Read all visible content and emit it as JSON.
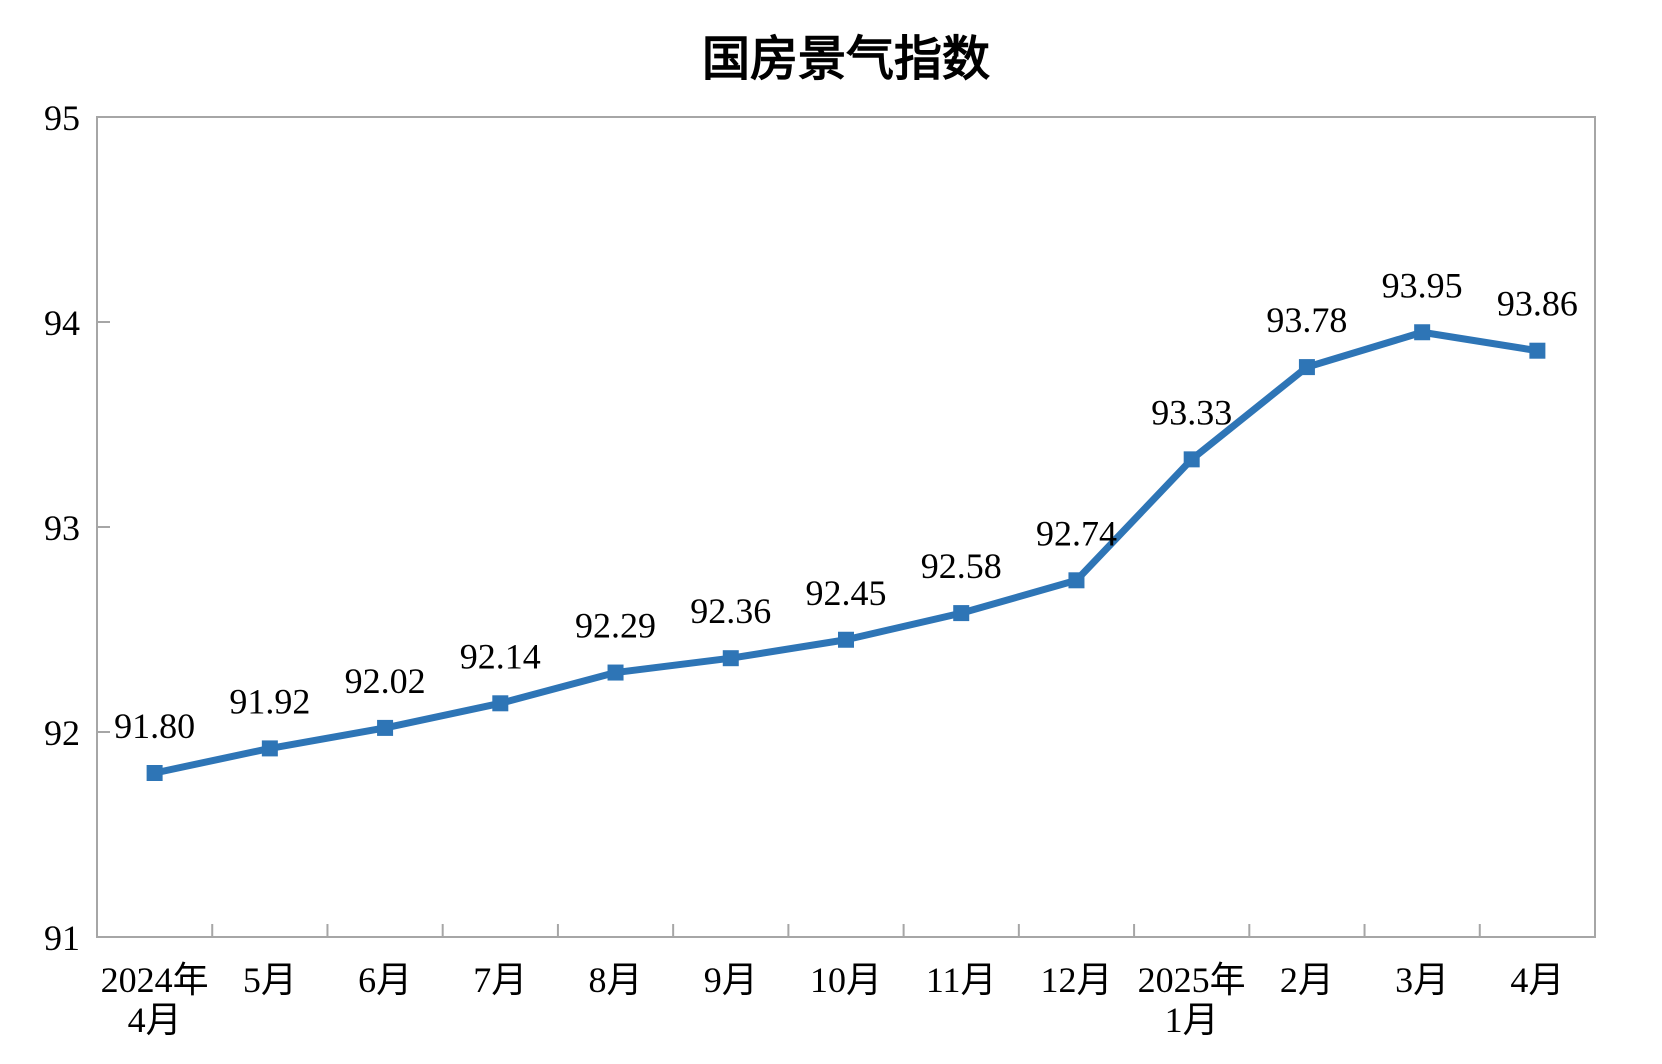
{
  "page": {
    "background": "#FFFFFF"
  },
  "chart_data": {
    "type": "line",
    "title": "国房景气指数",
    "categories": [
      [
        "2024年",
        "4月"
      ],
      [
        "5月"
      ],
      [
        "6月"
      ],
      [
        "7月"
      ],
      [
        "8月"
      ],
      [
        "9月"
      ],
      [
        "10月"
      ],
      [
        "11月"
      ],
      [
        "12月"
      ],
      [
        "2025年",
        "1月"
      ],
      [
        "2月"
      ],
      [
        "3月"
      ],
      [
        "4月"
      ]
    ],
    "series": [
      {
        "name": "国房景气指数",
        "values": [
          91.8,
          91.92,
          92.02,
          92.14,
          92.29,
          92.36,
          92.45,
          92.58,
          92.74,
          93.33,
          93.78,
          93.95,
          93.86
        ],
        "labels": [
          "91.80",
          "91.92",
          "92.02",
          "92.14",
          "92.29",
          "92.36",
          "92.45",
          "92.58",
          "92.74",
          "93.33",
          "93.78",
          "93.95",
          "93.86"
        ]
      }
    ],
    "xlabel": "",
    "ylabel": "",
    "ylim": [
      91,
      95
    ],
    "yticks": [
      91,
      92,
      93,
      94,
      95
    ],
    "grid": false,
    "legend_position": "none",
    "marker": "square",
    "colors": {
      "line": "#2E75B6",
      "axis": "#A6A6A6",
      "text": "#000000",
      "background": "#FFFFFF"
    }
  }
}
